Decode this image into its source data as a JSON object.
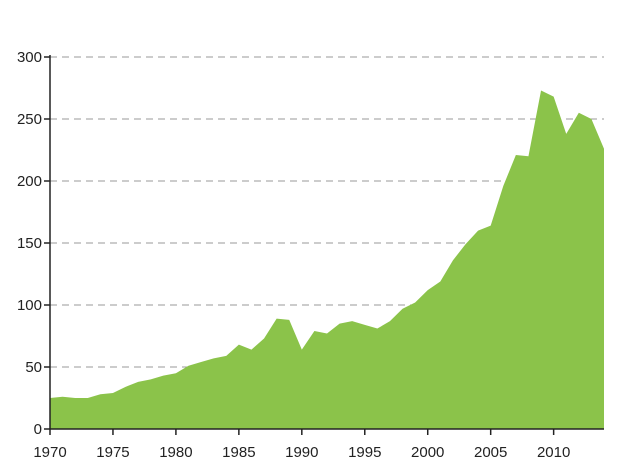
{
  "chart_data": {
    "type": "area",
    "title": "",
    "xlabel": "",
    "ylabel": "",
    "xlim": [
      1970,
      2014
    ],
    "ylim": [
      0,
      300
    ],
    "grid": true,
    "legend": "none",
    "color": "#8bc34a",
    "grid_color": "#9a9a9a",
    "x_ticks": [
      "1970",
      "1975",
      "1980",
      "1985",
      "1990",
      "1995",
      "2000",
      "2005",
      "2010"
    ],
    "y_ticks": [
      "0",
      "50",
      "100",
      "150",
      "200",
      "250",
      "300"
    ],
    "series": [
      {
        "x": [
          1970,
          1971,
          1972,
          1973,
          1974,
          1975,
          1976,
          1977,
          1978,
          1979,
          1980,
          1981,
          1982,
          1983,
          1984,
          1985,
          1986,
          1987,
          1988,
          1989,
          1990,
          1991,
          1992,
          1993,
          1994,
          1995,
          1996,
          1997,
          1998,
          1999,
          2000,
          2001,
          2002,
          2003,
          2004,
          2005,
          2006,
          2007,
          2008,
          2009,
          2010,
          2011,
          2012,
          2013,
          2014
        ],
        "values": [
          25,
          26,
          25,
          25,
          28,
          29,
          34,
          38,
          40,
          43,
          45,
          51,
          54,
          57,
          59,
          68,
          64,
          73,
          89,
          88,
          64,
          79,
          77,
          85,
          87,
          84,
          81,
          87,
          97,
          102,
          112,
          119,
          136,
          149,
          160,
          164,
          196,
          221,
          220,
          273,
          268,
          238,
          255,
          250,
          226
        ]
      }
    ]
  }
}
